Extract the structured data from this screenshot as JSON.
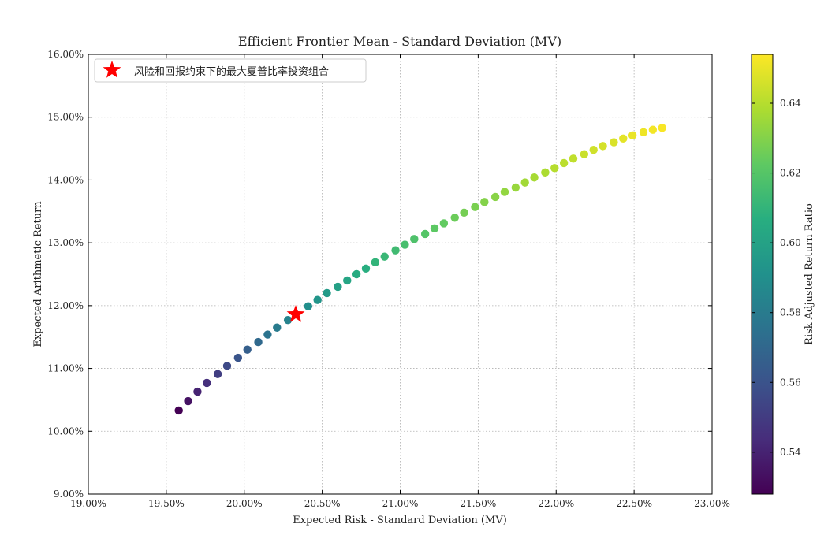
{
  "chart_data": {
    "type": "scatter",
    "title": "Efficient Frontier Mean - Standard Deviation (MV)",
    "xlabel": "Expected Risk - Standard Deviation (MV)",
    "ylabel": "Expected Arithmetic Return",
    "xlim": [
      19.0,
      23.0
    ],
    "ylim": [
      9.0,
      16.0
    ],
    "x_ticks": [
      "19.00%",
      "19.50%",
      "20.00%",
      "20.50%",
      "21.00%",
      "21.50%",
      "22.00%",
      "22.50%",
      "23.00%"
    ],
    "y_ticks": [
      "9.00%",
      "10.00%",
      "11.00%",
      "12.00%",
      "13.00%",
      "14.00%",
      "15.00%",
      "16.00%"
    ],
    "grid": true,
    "legend_position": "top-left",
    "colorbar": {
      "label": "Risk Adjusted Return Ratio",
      "range": [
        0.528,
        0.654
      ],
      "ticks": [
        "0.54",
        "0.56",
        "0.58",
        "0.60",
        "0.62",
        "0.64"
      ],
      "colormap": "viridis"
    },
    "series": [
      {
        "points": [
          {
            "x": 19.58,
            "y": 10.33,
            "ratio": 0.528
          },
          {
            "x": 19.64,
            "y": 10.48,
            "ratio": 0.534
          },
          {
            "x": 19.7,
            "y": 10.63,
            "ratio": 0.54
          },
          {
            "x": 19.76,
            "y": 10.77,
            "ratio": 0.545
          },
          {
            "x": 19.83,
            "y": 10.91,
            "ratio": 0.551
          },
          {
            "x": 19.89,
            "y": 11.04,
            "ratio": 0.556
          },
          {
            "x": 19.96,
            "y": 11.17,
            "ratio": 0.561
          },
          {
            "x": 20.02,
            "y": 11.3,
            "ratio": 0.566
          },
          {
            "x": 20.09,
            "y": 11.42,
            "ratio": 0.571
          },
          {
            "x": 20.15,
            "y": 11.54,
            "ratio": 0.576
          },
          {
            "x": 20.21,
            "y": 11.65,
            "ratio": 0.58
          },
          {
            "x": 20.28,
            "y": 11.77,
            "ratio": 0.584
          },
          {
            "x": 20.41,
            "y": 11.99,
            "ratio": 0.59
          },
          {
            "x": 20.47,
            "y": 12.09,
            "ratio": 0.593
          },
          {
            "x": 20.53,
            "y": 12.2,
            "ratio": 0.596
          },
          {
            "x": 20.6,
            "y": 12.3,
            "ratio": 0.599
          },
          {
            "x": 20.66,
            "y": 12.4,
            "ratio": 0.602
          },
          {
            "x": 20.72,
            "y": 12.5,
            "ratio": 0.605
          },
          {
            "x": 20.78,
            "y": 12.59,
            "ratio": 0.607
          },
          {
            "x": 20.84,
            "y": 12.69,
            "ratio": 0.61
          },
          {
            "x": 20.9,
            "y": 12.78,
            "ratio": 0.612
          },
          {
            "x": 20.97,
            "y": 12.88,
            "ratio": 0.614
          },
          {
            "x": 21.03,
            "y": 12.97,
            "ratio": 0.616
          },
          {
            "x": 21.09,
            "y": 13.06,
            "ratio": 0.618
          },
          {
            "x": 21.16,
            "y": 13.14,
            "ratio": 0.62
          },
          {
            "x": 21.22,
            "y": 13.23,
            "ratio": 0.622
          },
          {
            "x": 21.28,
            "y": 13.31,
            "ratio": 0.623
          },
          {
            "x": 21.35,
            "y": 13.4,
            "ratio": 0.625
          },
          {
            "x": 21.41,
            "y": 13.48,
            "ratio": 0.627
          },
          {
            "x": 21.48,
            "y": 13.57,
            "ratio": 0.628
          },
          {
            "x": 21.54,
            "y": 13.65,
            "ratio": 0.63
          },
          {
            "x": 21.61,
            "y": 13.73,
            "ratio": 0.631
          },
          {
            "x": 21.67,
            "y": 13.81,
            "ratio": 0.633
          },
          {
            "x": 21.74,
            "y": 13.88,
            "ratio": 0.634
          },
          {
            "x": 21.8,
            "y": 13.96,
            "ratio": 0.636
          },
          {
            "x": 21.86,
            "y": 14.04,
            "ratio": 0.637
          },
          {
            "x": 21.93,
            "y": 14.12,
            "ratio": 0.638
          },
          {
            "x": 21.99,
            "y": 14.19,
            "ratio": 0.64
          },
          {
            "x": 22.05,
            "y": 14.27,
            "ratio": 0.641
          },
          {
            "x": 22.11,
            "y": 14.34,
            "ratio": 0.642
          },
          {
            "x": 22.18,
            "y": 14.41,
            "ratio": 0.644
          },
          {
            "x": 22.24,
            "y": 14.48,
            "ratio": 0.645
          },
          {
            "x": 22.3,
            "y": 14.54,
            "ratio": 0.646
          },
          {
            "x": 22.37,
            "y": 14.6,
            "ratio": 0.647
          },
          {
            "x": 22.43,
            "y": 14.66,
            "ratio": 0.649
          },
          {
            "x": 22.49,
            "y": 14.71,
            "ratio": 0.65
          },
          {
            "x": 22.56,
            "y": 14.76,
            "ratio": 0.651
          },
          {
            "x": 22.62,
            "y": 14.8,
            "ratio": 0.652
          },
          {
            "x": 22.68,
            "y": 14.83,
            "ratio": 0.653
          }
        ]
      },
      {
        "name": "风险和回报约束下的最大夏普比率投资组合",
        "marker": "star",
        "color": "#ff0000",
        "points": [
          {
            "x": 20.33,
            "y": 11.86
          }
        ]
      }
    ]
  }
}
